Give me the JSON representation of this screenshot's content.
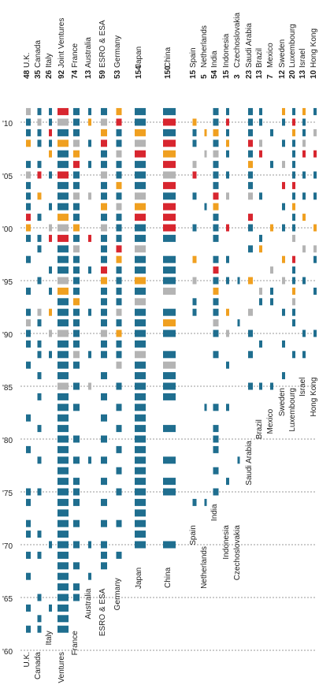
{
  "chart_data": {
    "type": "heatmap",
    "title": "",
    "xlabel": "",
    "ylabel": "",
    "ylim": [
      1959,
      2012
    ],
    "year_ticks": [
      {
        "year": 1960,
        "label": "'60"
      },
      {
        "year": 1965,
        "label": "'65"
      },
      {
        "year": 1970,
        "label": "'70"
      },
      {
        "year": 1975,
        "label": "'75"
      },
      {
        "year": 1980,
        "label": "'80"
      },
      {
        "year": 1985,
        "label": "'85"
      },
      {
        "year": 1990,
        "label": "'90"
      },
      {
        "year": 1995,
        "label": "'95"
      },
      {
        "year": 2000,
        "label": "'00"
      },
      {
        "year": 2005,
        "label": "'05"
      },
      {
        "year": 2010,
        "label": "'10"
      }
    ],
    "palette": {
      "a": "#1f6e8f",
      "b": "#d8262f",
      "c": "#f0a020",
      "d": "#b4b4b4"
    },
    "countries": [
      {
        "name": "U.K.",
        "count": "48",
        "first": 1962,
        "label_year": 1960,
        "active": [
          1962,
          1964,
          1967,
          1969,
          1971,
          1972,
          1974,
          1975,
          1979,
          1982,
          1987,
          1989,
          1990,
          1991,
          1992,
          1994,
          1997,
          1999,
          2000,
          2001,
          2002,
          2003,
          2004,
          2005,
          2006,
          2008,
          2009,
          2010,
          2011
        ]
      },
      {
        "name": "Canada",
        "count": "35",
        "first": 1962,
        "label_year": 1960,
        "active": [
          1962,
          1963,
          1965,
          1969,
          1971,
          1975,
          1978,
          1981,
          1984,
          1986,
          1988,
          1989,
          1991,
          1992,
          1995,
          1998,
          1999,
          2001,
          2003,
          2005,
          2006,
          2008,
          2009,
          2010,
          2011
        ]
      },
      {
        "name": "Italy",
        "count": "26",
        "first": 1964,
        "label_year": 1962,
        "active": [
          1964,
          1970,
          1988,
          1990,
          1992,
          1994,
          1996,
          1999,
          2000,
          2002,
          2005,
          2007,
          2008,
          2009,
          2010,
          2011
        ]
      },
      {
        "name": "Joint Ventures",
        "count": "92",
        "first": 1962,
        "label_year": 1960,
        "active": [
          1962,
          1963,
          1964,
          1965,
          1966,
          1967,
          1968,
          1969,
          1970,
          1971,
          1972,
          1973,
          1974,
          1975,
          1976,
          1977,
          1978,
          1979,
          1980,
          1981,
          1982,
          1983,
          1984,
          1985,
          1986,
          1987,
          1988,
          1989,
          1990,
          1991,
          1992,
          1993,
          1994,
          1995,
          1996,
          1997,
          1998,
          1999,
          2000,
          2001,
          2002,
          2003,
          2004,
          2005,
          2006,
          2007,
          2008,
          2009,
          2010,
          2011
        ]
      },
      {
        "name": "France",
        "count": "74",
        "first": 1965,
        "label_year": 1962,
        "active": [
          1965,
          1966,
          1968,
          1970,
          1972,
          1974,
          1975,
          1976,
          1978,
          1980,
          1983,
          1985,
          1987,
          1988,
          1989,
          1990,
          1991,
          1992,
          1993,
          1994,
          1995,
          1996,
          1997,
          1998,
          1999,
          2000,
          2001,
          2002,
          2003,
          2004,
          2005,
          2006,
          2007,
          2008,
          2009,
          2010,
          2011
        ]
      },
      {
        "name": "Australia",
        "count": "13",
        "first": 1967,
        "label_year": 1966,
        "active": [
          1967,
          1970,
          1978,
          1985,
          1988,
          1992,
          1996,
          1999,
          2003,
          2006,
          2008,
          2010,
          2011
        ]
      },
      {
        "name": "ESRO & ESA",
        "count": "59",
        "first": 1968,
        "label_year": 1966,
        "active": [
          1968,
          1969,
          1970,
          1972,
          1974,
          1976,
          1978,
          1980,
          1982,
          1984,
          1986,
          1988,
          1989,
          1990,
          1991,
          1992,
          1993,
          1994,
          1995,
          1996,
          1997,
          1998,
          1999,
          2000,
          2001,
          2002,
          2003,
          2004,
          2005,
          2006,
          2007,
          2008,
          2009,
          2010,
          2011
        ]
      },
      {
        "name": "Germany",
        "count": "53",
        "first": 1969,
        "label_year": 1967,
        "active": [
          1969,
          1972,
          1975,
          1977,
          1979,
          1981,
          1983,
          1985,
          1987,
          1988,
          1989,
          1990,
          1991,
          1992,
          1993,
          1994,
          1995,
          1996,
          1997,
          1998,
          1999,
          2000,
          2001,
          2002,
          2003,
          2004,
          2005,
          2006,
          2007,
          2008,
          2009,
          2010,
          2011
        ]
      },
      {
        "name": "Japan",
        "count": "154",
        "first": 1970,
        "label_year": 1968,
        "active": [
          1970,
          1971,
          1972,
          1973,
          1974,
          1975,
          1976,
          1977,
          1978,
          1979,
          1980,
          1981,
          1982,
          1983,
          1984,
          1985,
          1986,
          1987,
          1988,
          1989,
          1990,
          1991,
          1992,
          1993,
          1994,
          1995,
          1996,
          1997,
          1998,
          1999,
          2000,
          2001,
          2002,
          2003,
          2004,
          2005,
          2006,
          2007,
          2008,
          2009,
          2010,
          2011
        ]
      },
      {
        "name": "China",
        "count": "150",
        "first": 1970,
        "label_year": 1968,
        "active": [
          1970,
          1975,
          1976,
          1978,
          1981,
          1984,
          1985,
          1986,
          1987,
          1988,
          1990,
          1991,
          1992,
          1994,
          1995,
          1996,
          1997,
          1999,
          2000,
          2001,
          2002,
          2003,
          2004,
          2005,
          2006,
          2007,
          2008,
          2009,
          2010,
          2011
        ]
      },
      {
        "name": "Spain",
        "count": "15",
        "first": 1974,
        "label_year": 1972,
        "active": [
          1974,
          1992,
          1993,
          1995,
          1997,
          2000,
          2003,
          2005,
          2006,
          2008,
          2009,
          2010
        ]
      },
      {
        "name": "Netherlands",
        "count": "5",
        "first": 1974,
        "label_year": 1970,
        "active": [
          1974,
          1983,
          2002,
          2007,
          2009
        ]
      },
      {
        "name": "India",
        "count": "54",
        "first": 1975,
        "label_year": 1974,
        "active": [
          1975,
          1977,
          1979,
          1980,
          1981,
          1983,
          1988,
          1990,
          1991,
          1992,
          1993,
          1994,
          1995,
          1996,
          1997,
          1999,
          2000,
          2001,
          2002,
          2003,
          2004,
          2005,
          2006,
          2007,
          2008,
          2009,
          2010,
          2011
        ]
      },
      {
        "name": "Indonesia",
        "count": "15",
        "first": 1976,
        "label_year": 1972,
        "active": [
          1976,
          1983,
          1987,
          1990,
          1992,
          1995,
          1997,
          2000,
          2003,
          2005,
          2007,
          2008,
          2009,
          2010,
          2011
        ]
      },
      {
        "name": "Czechoslovakia",
        "count": "3",
        "first": 1978,
        "label_year": 1972,
        "active": [
          1978,
          1991,
          1995
        ]
      },
      {
        "name": "Saudi Arabia",
        "count": "23",
        "first": 1985,
        "label_year": 1980,
        "active": [
          1985,
          1988,
          1990,
          1992,
          1995,
          1998,
          2000,
          2001,
          2003,
          2004,
          2005,
          2006,
          2007,
          2008,
          2009,
          2010,
          2011
        ]
      },
      {
        "name": "Brazil",
        "count": "13",
        "first": 1985,
        "label_year": 1982,
        "active": [
          1985,
          1989,
          1993,
          1994,
          1998,
          1999,
          2003,
          2007,
          2008,
          2010,
          2011
        ]
      },
      {
        "name": "Mexico",
        "count": "7",
        "first": 1985,
        "label_year": 1983,
        "active": [
          1985,
          1993,
          1994,
          1996,
          2000,
          2006,
          2009
        ]
      },
      {
        "name": "Sweden",
        "count": "12",
        "first": 1986,
        "label_year": 1985,
        "active": [
          1986,
          1989,
          1992,
          1995,
          1997,
          2000,
          2002,
          2004,
          2006,
          2008,
          2010,
          2011
        ]
      },
      {
        "name": "Luxembourg",
        "count": "20",
        "first": 1988,
        "label_year": 1985,
        "active": [
          1988,
          1991,
          1992,
          1993,
          1994,
          1995,
          1996,
          1997,
          1999,
          2000,
          2001,
          2002,
          2003,
          2004,
          2005,
          2006,
          2007,
          2008,
          2009,
          2010,
          2011
        ]
      },
      {
        "name": "Israel",
        "count": "13",
        "first": 1988,
        "label_year": 1986,
        "active": [
          1988,
          1990,
          1995,
          1998,
          2001,
          2003,
          2005,
          2007,
          2008,
          2009,
          2010,
          2011
        ]
      },
      {
        "name": "Hong Kong",
        "count": "10",
        "first": 1990,
        "label_year": 1986,
        "active": [
          1990,
          1994,
          1997,
          1998,
          2000,
          2003,
          2005,
          2007,
          2009,
          2011
        ]
      }
    ]
  }
}
